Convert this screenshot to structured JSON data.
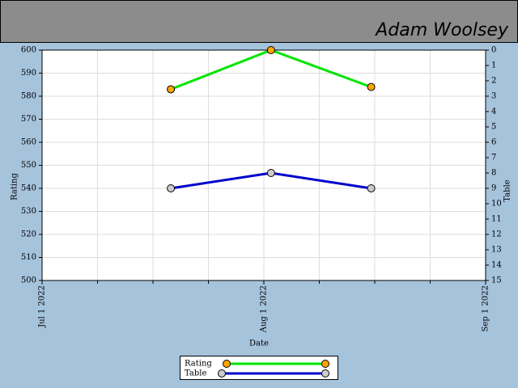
{
  "chart_data": {
    "type": "line",
    "author": "Adam Woolsey",
    "xlabel": "Date",
    "ylabel": "Rating",
    "y2label": "Table",
    "x": [
      "2022-07-19",
      "2022-08-02",
      "2022-08-16"
    ],
    "series": [
      {
        "name": "Rating",
        "color": "#00e600",
        "marker_color": "#ffa500",
        "values": [
          583,
          600,
          584
        ]
      },
      {
        "name": "Table",
        "color": "#0000cc",
        "marker_color": "#cccccc",
        "axis": "y2",
        "values": [
          9,
          8,
          9
        ]
      }
    ],
    "xlim": [
      "2022-07-01",
      "2022-09-01"
    ],
    "xticks": [
      {
        "value": "2022-07-01",
        "label": "Jul 1 2022"
      },
      {
        "value": "2022-08-01",
        "label": "Aug 1 2022"
      },
      {
        "value": "2022-09-01",
        "label": "Sep 1 2022"
      }
    ],
    "ylim": [
      500,
      600
    ],
    "yticks": [
      500,
      510,
      520,
      530,
      540,
      550,
      560,
      570,
      580,
      590,
      600
    ],
    "y2lim": [
      15,
      0
    ],
    "y2ticks": [
      0,
      1,
      2,
      3,
      4,
      5,
      6,
      7,
      8,
      9,
      10,
      11,
      12,
      13,
      14,
      15
    ],
    "grid": true
  }
}
